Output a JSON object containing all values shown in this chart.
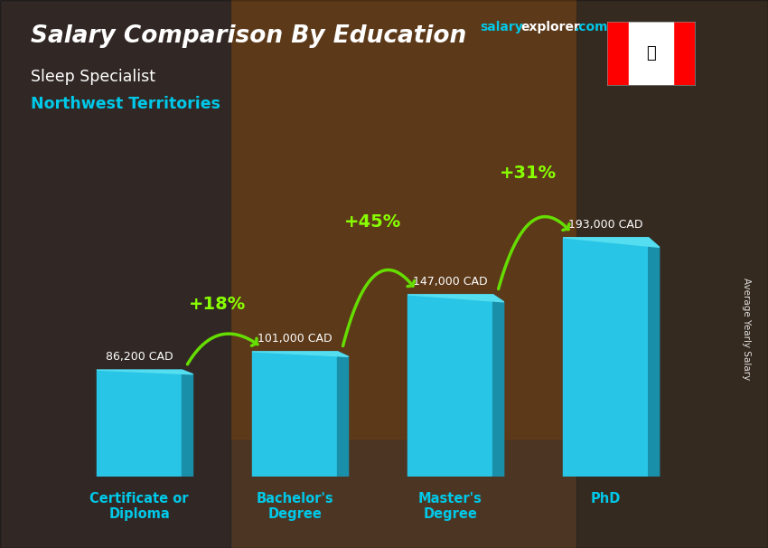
{
  "title_line1": "Salary Comparison By Education",
  "subtitle_line1": "Sleep Specialist",
  "subtitle_line2": "Northwest Territories",
  "categories": [
    "Certificate or\nDiploma",
    "Bachelor's\nDegree",
    "Master's\nDegree",
    "PhD"
  ],
  "values": [
    86200,
    101000,
    147000,
    193000
  ],
  "value_labels": [
    "86,200 CAD",
    "101,000 CAD",
    "147,000 CAD",
    "193,000 CAD"
  ],
  "pct_labels": [
    "+18%",
    "+45%",
    "+31%"
  ],
  "bar_color_front": "#29c5e6",
  "bar_color_side": "#1a8faa",
  "bar_color_top": "#55ddf0",
  "bg_color": "#7a5230",
  "overlay_color": "#000000",
  "overlay_alpha": 0.45,
  "title_color": "#ffffff",
  "subtitle1_color": "#ffffff",
  "subtitle2_color": "#00c8e8",
  "value_label_color": "#ffffff",
  "pct_color": "#88ff00",
  "tick_label_color": "#00c8e8",
  "ylabel_text": "Average Yearly Salary",
  "ylabel_color": "#ffffff",
  "ylim_max": 230000,
  "bar_width": 0.55,
  "arrow_color": "#66dd00",
  "salary_color": "#00c8e8",
  "explorer_color": "#ffffff",
  "com_color": "#00c8e8"
}
